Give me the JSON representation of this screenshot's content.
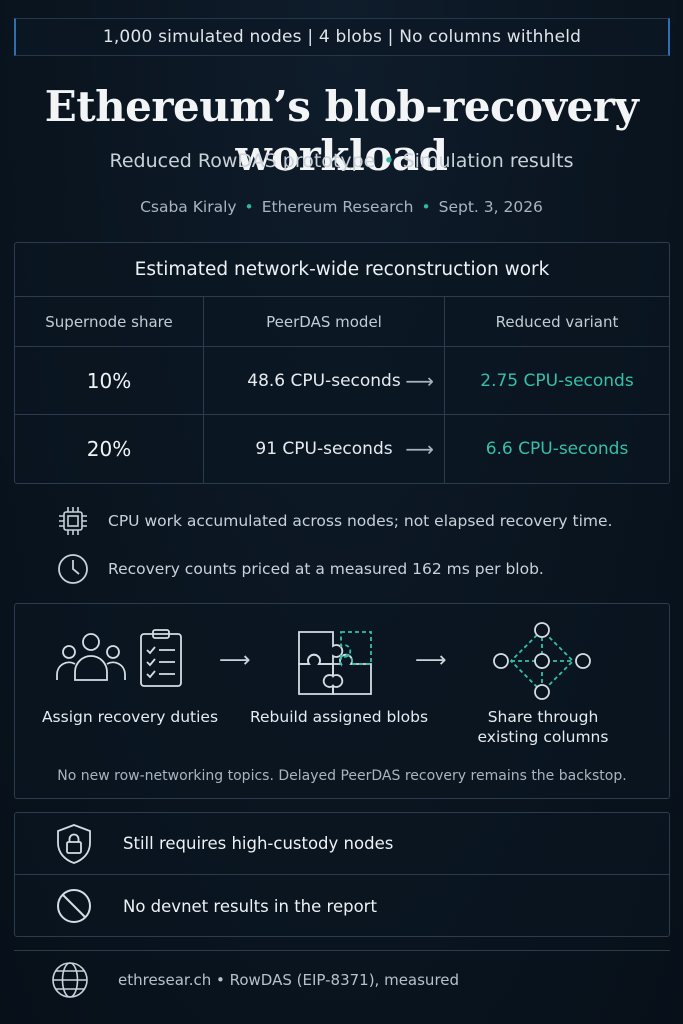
{
  "banner": "1,000 simulated nodes   |   4 blobs   |   No columns withheld",
  "title": "Ethereum’s blob-recovery workload",
  "subtitle": {
    "part1": "Reduced RowDAS prototype",
    "part2": "Simulation results"
  },
  "byline": {
    "author": "Csaba Kiraly",
    "org": "Ethereum Research",
    "date": "Sept. 3, 2026"
  },
  "separator": "•",
  "table": {
    "title": "Estimated network-wide reconstruction work",
    "headers": [
      "Supernode share",
      "PeerDAS model",
      "Reduced variant"
    ],
    "rows": [
      {
        "share": "10%",
        "peerdas": "48.6 CPU-seconds",
        "reduced": "2.75 CPU-seconds"
      },
      {
        "share": "20%",
        "peerdas": "91 CPU-seconds",
        "reduced": "6.6 CPU-seconds"
      }
    ],
    "arrow": "⟶"
  },
  "notes": [
    {
      "icon": "cpu-chip-icon",
      "text": "CPU work accumulated across nodes; not elapsed recovery time."
    },
    {
      "icon": "clock-icon",
      "text": "Recovery counts priced at a measured 162 ms per blob."
    }
  ],
  "flow": {
    "steps": [
      {
        "icon": "people-checklist-icon",
        "label": "Assign recovery duties"
      },
      {
        "icon": "puzzle-icon",
        "label": "Rebuild assigned blobs"
      },
      {
        "icon": "network-icon",
        "label_line1": "Share through",
        "label_line2": "existing columns"
      }
    ],
    "arrow": "⟶",
    "footnote": "No new row-networking topics. Delayed PeerDAS recovery remains the backstop."
  },
  "limitations": [
    {
      "icon": "lock-shield-icon",
      "text": "Still requires high-custody nodes"
    },
    {
      "icon": "no-entry-icon",
      "text": "No devnet results in the report"
    }
  ],
  "footer": {
    "icon": "globe-icon",
    "text": "ethresear.ch  •  RowDAS (EIP-8371), measured"
  },
  "colors": {
    "accent": "#35c0aa",
    "banner_edge": "#2f6fb0",
    "background": "#0a1520"
  }
}
